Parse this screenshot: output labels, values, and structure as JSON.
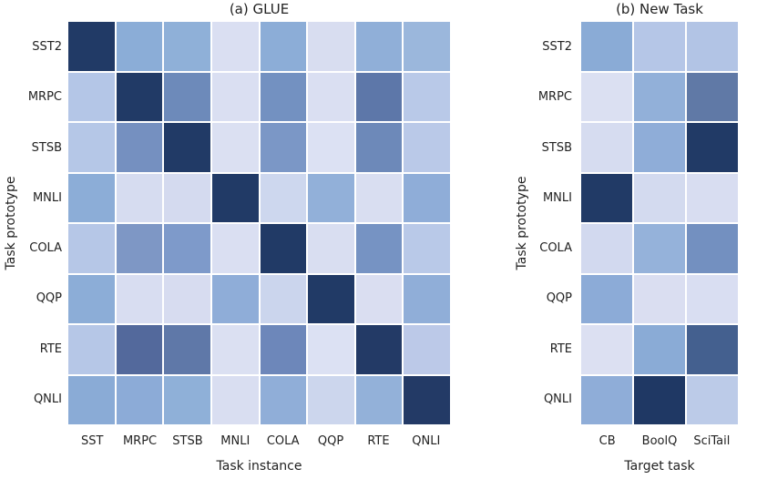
{
  "figure": {
    "background": "#ffffff",
    "text_color": "#222222",
    "cell_gap_color": "#ffffff"
  },
  "chart_data": [
    {
      "id": "glue",
      "type": "heatmap",
      "title": "(a) GLUE",
      "xlabel": "Task instance",
      "ylabel": "Task prototype",
      "rows": [
        "SST2",
        "MRPC",
        "STSB",
        "MNLI",
        "COLA",
        "QQP",
        "RTE",
        "QNLI"
      ],
      "columns": [
        "SST",
        "MRPC",
        "STSB",
        "MNLI",
        "COLA",
        "QQP",
        "RTE",
        "QNLI"
      ],
      "colormap": "Blues (light = low, dark navy = high)",
      "legend": "none",
      "values": [
        [
          1.0,
          0.4,
          0.38,
          0.06,
          0.4,
          0.07,
          0.39,
          0.33
        ],
        [
          0.26,
          1.0,
          0.57,
          0.06,
          0.53,
          0.06,
          0.64,
          0.24
        ],
        [
          0.25,
          0.53,
          1.0,
          0.05,
          0.49,
          0.05,
          0.57,
          0.23
        ],
        [
          0.4,
          0.08,
          0.09,
          1.0,
          0.15,
          0.37,
          0.07,
          0.39
        ],
        [
          0.25,
          0.5,
          0.48,
          0.06,
          1.0,
          0.07,
          0.52,
          0.24
        ],
        [
          0.4,
          0.07,
          0.07,
          0.39,
          0.16,
          1.0,
          0.07,
          0.39
        ],
        [
          0.25,
          0.73,
          0.64,
          0.05,
          0.58,
          0.05,
          1.0,
          0.22
        ],
        [
          0.41,
          0.4,
          0.38,
          0.07,
          0.38,
          0.16,
          0.36,
          1.0
        ]
      ],
      "cell_colors": [
        [
          "#213a66",
          "#8badd7",
          "#8fb0d8",
          "#dadff2",
          "#8cadd7",
          "#d8ddf0",
          "#90afd8",
          "#9bb7dc"
        ],
        [
          "#b4c6e7",
          "#213a66",
          "#6d8aba",
          "#dadff2",
          "#7391c1",
          "#dadff2",
          "#5d77a9",
          "#b9c9e8"
        ],
        [
          "#b5c7e7",
          "#7590c0",
          "#213a66",
          "#dbe0f2",
          "#7b97c6",
          "#dce1f3",
          "#6d89b9",
          "#bac9e8"
        ],
        [
          "#8cadd7",
          "#d6dcf0",
          "#d4daef",
          "#213a66",
          "#cdd7ee",
          "#92b0d9",
          "#d9def1",
          "#8fadd8"
        ],
        [
          "#b6c7e7",
          "#7e97c5",
          "#7e9aca",
          "#dadff2",
          "#213a66",
          "#d9def1",
          "#7693c3",
          "#b9c9e8"
        ],
        [
          "#8cadd7",
          "#d8ddf1",
          "#d7dcf0",
          "#8fadd8",
          "#cbd5ed",
          "#213a66",
          "#dadef1",
          "#90aed8"
        ],
        [
          "#b6c7e7",
          "#53699c",
          "#5f78a8",
          "#dbe0f2",
          "#6d87ba",
          "#dce1f3",
          "#233a66",
          "#bcc9e8"
        ],
        [
          "#8aabd6",
          "#8cabd7",
          "#8fb0d8",
          "#d9def1",
          "#90aed8",
          "#ccd6ed",
          "#93b1d9",
          "#233a66"
        ]
      ]
    },
    {
      "id": "new-task",
      "type": "heatmap",
      "title": "(b) New Task",
      "xlabel": "Target task",
      "ylabel": "Task prototype",
      "rows": [
        "SST2",
        "MRPC",
        "STSB",
        "MNLI",
        "COLA",
        "QQP",
        "RTE",
        "QNLI"
      ],
      "columns": [
        "CB",
        "BoolQ",
        "SciTail"
      ],
      "colormap": "Blues (light = low, dark navy = high)",
      "legend": "none",
      "values": [
        [
          0.41,
          0.25,
          0.27
        ],
        [
          0.06,
          0.38,
          0.63
        ],
        [
          0.08,
          0.39,
          1.0
        ],
        [
          1.0,
          0.13,
          0.07
        ],
        [
          0.11,
          0.36,
          0.53
        ],
        [
          0.4,
          0.07,
          0.07
        ],
        [
          0.06,
          0.41,
          0.77
        ],
        [
          0.39,
          1.0,
          0.22
        ]
      ],
      "cell_colors": [
        [
          "#8aabd6",
          "#b5c6e7",
          "#b2c4e5"
        ],
        [
          "#dbe0f2",
          "#92b0d9",
          "#6079a6"
        ],
        [
          "#d6dcf0",
          "#8fadd8",
          "#213a66"
        ],
        [
          "#213a66",
          "#d3daef",
          "#d8ddf1"
        ],
        [
          "#d2d9ef",
          "#95b2da",
          "#7390c0"
        ],
        [
          "#8cabd7",
          "#dadef1",
          "#d9def2"
        ],
        [
          "#dce0f2",
          "#8aabd6",
          "#44608f"
        ],
        [
          "#8fadd8",
          "#1f3864",
          "#bccbe8"
        ]
      ]
    }
  ]
}
